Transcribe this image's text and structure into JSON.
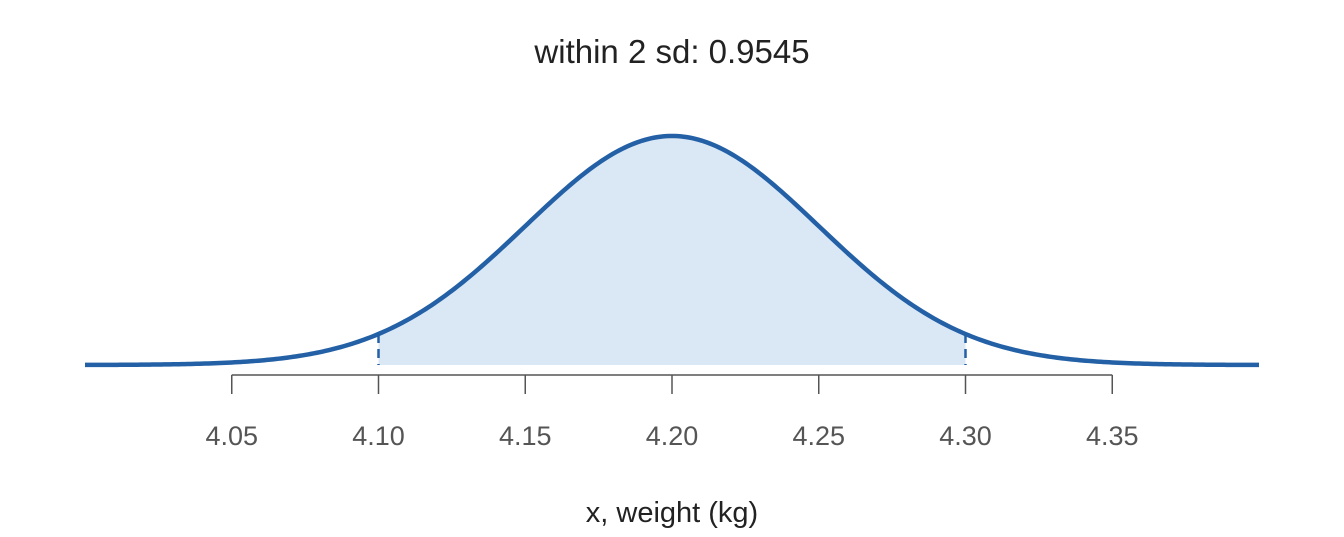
{
  "chart_data": {
    "type": "area",
    "title": "within 2 sd: 0.9545",
    "xlabel": "x, weight (kg)",
    "ylabel": "",
    "distribution": "normal",
    "mean": 4.2,
    "sd": 0.05,
    "xlim": [
      4.0,
      4.4
    ],
    "shaded_range": [
      4.1,
      4.3
    ],
    "x_ticks": [
      4.05,
      4.1,
      4.15,
      4.2,
      4.25,
      4.3,
      4.35
    ],
    "x_tick_labels": [
      "4.05",
      "4.10",
      "4.15",
      "4.20",
      "4.25",
      "4.30",
      "4.35"
    ],
    "grid": false,
    "colors": {
      "curve": "#2360a5",
      "shade": "#dae8f6",
      "axis": "#555555",
      "text": "#222222"
    }
  }
}
